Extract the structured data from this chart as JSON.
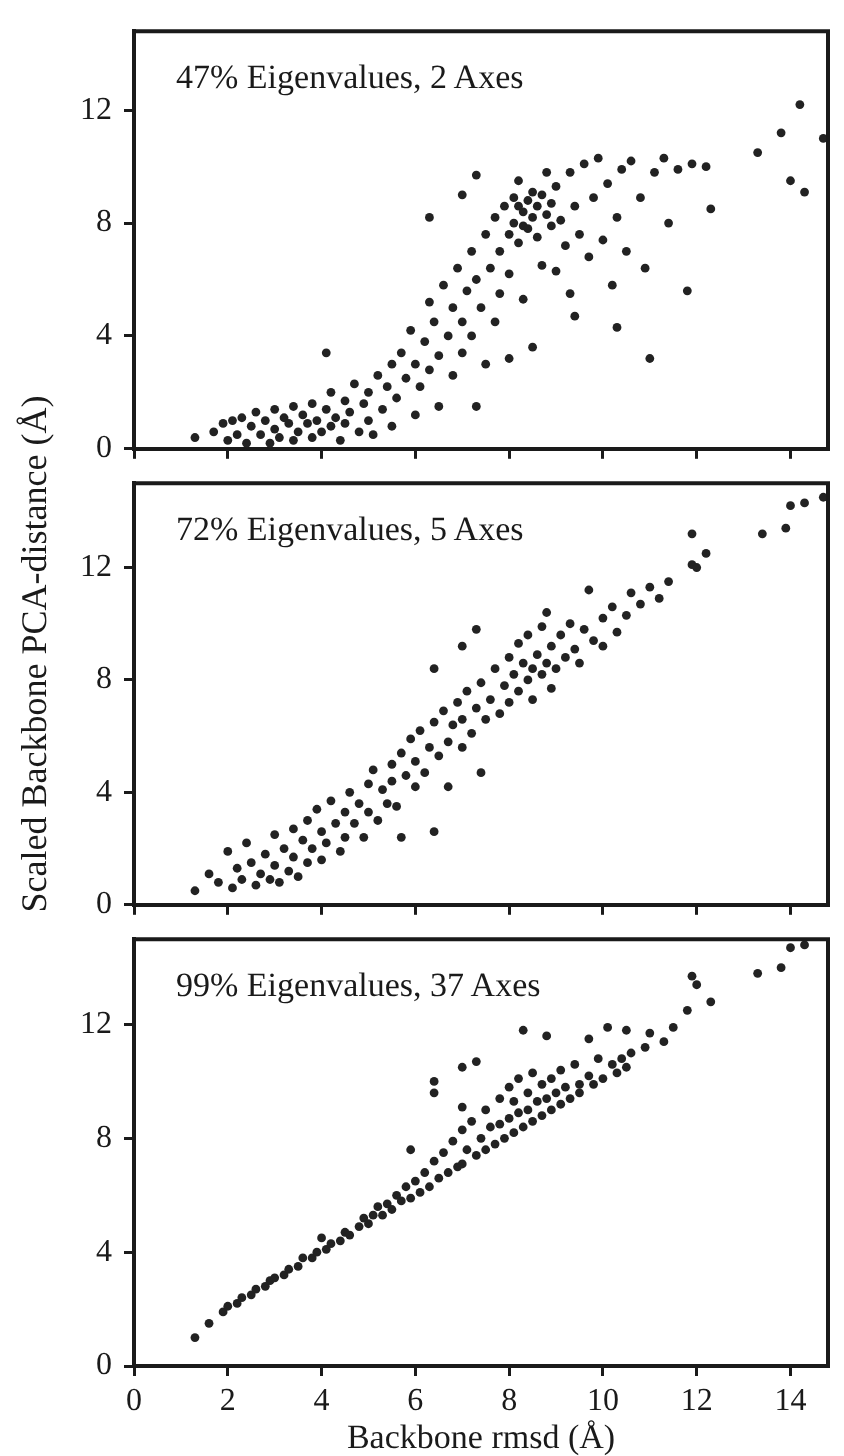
{
  "chart_data": [
    {
      "type": "scatter",
      "annotations": [
        "47% Eigenvalues, 2 Axes"
      ],
      "color": "#222222",
      "marker": "circle",
      "xlim": [
        0,
        14.8
      ],
      "ylim": [
        0,
        14.8
      ],
      "xticks": [
        0,
        2,
        4,
        6,
        8,
        10,
        12,
        14
      ],
      "yticks": [
        0,
        4,
        8,
        12
      ],
      "tick_labels": "y",
      "x": [
        1.3,
        1.7,
        1.9,
        2.0,
        2.1,
        2.2,
        2.3,
        2.4,
        2.5,
        2.6,
        2.7,
        2.8,
        2.9,
        3.0,
        3.0,
        3.1,
        3.2,
        3.3,
        3.4,
        3.4,
        3.5,
        3.6,
        3.7,
        3.8,
        3.8,
        3.9,
        4.0,
        4.1,
        4.1,
        4.2,
        4.2,
        4.3,
        4.4,
        4.5,
        4.5,
        4.6,
        4.7,
        4.8,
        4.9,
        5.0,
        5.0,
        5.1,
        5.2,
        5.3,
        5.4,
        5.5,
        5.5,
        5.6,
        5.7,
        5.8,
        5.9,
        6.0,
        6.0,
        6.1,
        6.2,
        6.3,
        6.3,
        6.3,
        6.4,
        6.5,
        6.5,
        6.6,
        6.7,
        6.8,
        6.8,
        6.9,
        7.0,
        7.0,
        7.0,
        7.1,
        7.2,
        7.2,
        7.3,
        7.3,
        7.3,
        7.4,
        7.5,
        7.5,
        7.6,
        7.7,
        7.7,
        7.8,
        7.8,
        7.9,
        8.0,
        8.0,
        8.0,
        8.1,
        8.1,
        8.2,
        8.2,
        8.2,
        8.3,
        8.3,
        8.3,
        8.4,
        8.4,
        8.5,
        8.5,
        8.5,
        8.6,
        8.6,
        8.7,
        8.7,
        8.8,
        8.8,
        8.9,
        8.9,
        9.0,
        9.0,
        9.1,
        9.2,
        9.3,
        9.3,
        9.4,
        9.4,
        9.5,
        9.6,
        9.7,
        9.8,
        9.9,
        10.0,
        10.1,
        10.2,
        10.3,
        10.3,
        10.4,
        10.5,
        10.6,
        10.8,
        10.9,
        11.0,
        11.1,
        11.3,
        11.4,
        11.6,
        11.8,
        11.9,
        12.2,
        12.3,
        13.3,
        13.8,
        14.0,
        14.2,
        14.3,
        14.7
      ],
      "values": [
        0.4,
        0.6,
        0.9,
        0.3,
        1.0,
        0.5,
        1.1,
        0.2,
        0.8,
        1.3,
        0.5,
        1.0,
        0.2,
        1.4,
        0.7,
        0.4,
        1.1,
        0.9,
        1.5,
        0.3,
        0.6,
        1.2,
        0.9,
        1.6,
        0.4,
        1.0,
        0.6,
        1.4,
        3.4,
        2.0,
        0.8,
        1.1,
        0.3,
        1.7,
        0.9,
        1.3,
        2.3,
        0.6,
        1.6,
        2.0,
        1.0,
        0.5,
        2.6,
        1.4,
        2.2,
        0.8,
        3.0,
        1.8,
        3.4,
        2.5,
        4.2,
        1.2,
        3.0,
        2.2,
        3.8,
        5.2,
        2.8,
        8.2,
        4.5,
        3.3,
        1.5,
        5.8,
        4.0,
        2.6,
        5.0,
        6.4,
        4.5,
        3.4,
        9.0,
        5.6,
        7.0,
        4.0,
        1.5,
        6.0,
        9.7,
        5.0,
        7.6,
        3.0,
        6.4,
        4.5,
        8.2,
        7.0,
        5.5,
        8.6,
        7.6,
        3.2,
        6.2,
        8.9,
        8.0,
        7.3,
        9.5,
        8.6,
        8.4,
        5.3,
        7.9,
        8.8,
        7.8,
        9.1,
        8.2,
        3.6,
        7.5,
        8.6,
        9.0,
        6.5,
        8.3,
        9.8,
        7.9,
        8.7,
        9.3,
        6.3,
        8.1,
        7.2,
        9.8,
        5.5,
        8.6,
        4.7,
        7.6,
        10.1,
        6.8,
        8.9,
        10.3,
        7.4,
        9.4,
        5.8,
        4.3,
        8.2,
        9.9,
        7.0,
        10.2,
        8.9,
        6.4,
        3.2,
        9.8,
        10.3,
        8.0,
        9.9,
        5.6,
        10.1,
        10.0,
        8.5,
        10.5,
        11.2,
        9.5,
        12.2,
        9.1,
        11.0
      ]
    },
    {
      "type": "scatter",
      "annotations": [
        "72% Eigenvalues, 5 Axes"
      ],
      "ylabel": "Scaled Backbone PCA-distance (Å)",
      "color": "#222222",
      "marker": "circle",
      "xlim": [
        0,
        14.8
      ],
      "ylim": [
        0,
        15
      ],
      "xticks": [
        0,
        2,
        4,
        6,
        8,
        10,
        12,
        14
      ],
      "yticks": [
        0,
        4,
        8,
        12
      ],
      "tick_labels": "y",
      "x": [
        1.3,
        1.6,
        1.8,
        2.0,
        2.1,
        2.2,
        2.3,
        2.4,
        2.5,
        2.6,
        2.7,
        2.8,
        2.9,
        3.0,
        3.0,
        3.1,
        3.2,
        3.3,
        3.4,
        3.4,
        3.5,
        3.6,
        3.7,
        3.7,
        3.8,
        3.9,
        4.0,
        4.0,
        4.1,
        4.2,
        4.3,
        4.4,
        4.5,
        4.5,
        4.6,
        4.7,
        4.8,
        4.9,
        5.0,
        5.0,
        5.1,
        5.2,
        5.3,
        5.4,
        5.5,
        5.5,
        5.6,
        5.7,
        5.7,
        5.8,
        5.9,
        6.0,
        6.0,
        6.1,
        6.2,
        6.3,
        6.4,
        6.4,
        6.4,
        6.5,
        6.6,
        6.7,
        6.7,
        6.8,
        6.9,
        7.0,
        7.0,
        7.0,
        7.1,
        7.2,
        7.3,
        7.3,
        7.4,
        7.4,
        7.5,
        7.6,
        7.7,
        7.8,
        7.9,
        8.0,
        8.0,
        8.1,
        8.2,
        8.2,
        8.3,
        8.4,
        8.4,
        8.5,
        8.5,
        8.6,
        8.7,
        8.7,
        8.8,
        8.8,
        8.9,
        8.9,
        9.0,
        9.1,
        9.2,
        9.3,
        9.4,
        9.5,
        9.6,
        9.7,
        9.8,
        10.0,
        10.0,
        10.2,
        10.3,
        10.5,
        10.6,
        10.8,
        11.0,
        11.2,
        11.4,
        11.9,
        11.9,
        12.0,
        12.2,
        13.4,
        13.9,
        14.0,
        14.3,
        14.7
      ],
      "values": [
        0.5,
        1.1,
        0.8,
        1.9,
        0.6,
        1.3,
        0.9,
        2.2,
        1.5,
        0.7,
        1.1,
        1.8,
        0.9,
        2.5,
        1.4,
        0.8,
        2.0,
        1.2,
        2.7,
        1.7,
        1.0,
        2.3,
        3.0,
        1.5,
        2.0,
        3.4,
        2.6,
        1.6,
        2.2,
        3.7,
        2.9,
        1.9,
        3.3,
        2.4,
        4.0,
        2.9,
        3.6,
        2.4,
        4.3,
        3.3,
        4.8,
        3.0,
        4.1,
        3.6,
        5.0,
        4.4,
        3.5,
        2.4,
        5.4,
        4.6,
        5.9,
        4.2,
        5.1,
        6.2,
        4.7,
        5.6,
        6.5,
        2.6,
        8.4,
        5.3,
        6.9,
        5.8,
        4.2,
        6.4,
        7.2,
        5.6,
        6.6,
        9.2,
        7.6,
        6.1,
        7.0,
        9.8,
        4.7,
        7.9,
        6.6,
        7.3,
        8.4,
        6.8,
        7.8,
        8.8,
        7.2,
        8.2,
        9.3,
        7.6,
        8.6,
        8.0,
        9.6,
        8.4,
        7.3,
        8.9,
        8.2,
        9.9,
        8.6,
        10.4,
        7.7,
        9.2,
        8.4,
        9.6,
        8.8,
        10.0,
        9.1,
        8.6,
        9.8,
        11.2,
        9.4,
        10.2,
        9.2,
        10.6,
        9.7,
        10.3,
        11.1,
        10.7,
        11.3,
        10.9,
        11.5,
        12.1,
        13.2,
        12.0,
        12.5,
        13.2,
        13.4,
        14.2,
        14.3,
        14.5
      ]
    },
    {
      "type": "scatter",
      "annotations": [
        "99% Eigenvalues, 37 Axes"
      ],
      "xlabel": "Backbone rmsd (Å)",
      "color": "#222222",
      "marker": "circle",
      "xlim": [
        0,
        14.8
      ],
      "ylim": [
        0,
        15
      ],
      "xticks": [
        0,
        2,
        4,
        6,
        8,
        10,
        12,
        14
      ],
      "yticks": [
        0,
        4,
        8,
        12
      ],
      "x": [
        1.3,
        1.6,
        1.9,
        2.0,
        2.2,
        2.3,
        2.5,
        2.6,
        2.8,
        2.9,
        3.0,
        3.2,
        3.3,
        3.5,
        3.6,
        3.8,
        3.9,
        4.0,
        4.1,
        4.2,
        4.4,
        4.5,
        4.6,
        4.8,
        4.9,
        5.0,
        5.1,
        5.2,
        5.3,
        5.4,
        5.5,
        5.6,
        5.7,
        5.8,
        5.9,
        5.9,
        6.0,
        6.1,
        6.2,
        6.3,
        6.4,
        6.4,
        6.4,
        6.5,
        6.6,
        6.7,
        6.8,
        6.9,
        7.0,
        7.0,
        7.0,
        7.0,
        7.1,
        7.2,
        7.3,
        7.3,
        7.4,
        7.5,
        7.5,
        7.6,
        7.7,
        7.8,
        7.8,
        7.9,
        8.0,
        8.0,
        8.1,
        8.1,
        8.2,
        8.2,
        8.3,
        8.3,
        8.4,
        8.4,
        8.5,
        8.5,
        8.6,
        8.7,
        8.7,
        8.8,
        8.8,
        8.9,
        8.9,
        9.0,
        9.1,
        9.1,
        9.2,
        9.3,
        9.4,
        9.5,
        9.5,
        9.7,
        9.7,
        9.8,
        9.9,
        10.0,
        10.1,
        10.2,
        10.3,
        10.4,
        10.5,
        10.5,
        10.6,
        10.9,
        11.0,
        11.3,
        11.5,
        11.8,
        11.9,
        12.0,
        12.3,
        13.3,
        13.8,
        14.0,
        14.3
      ],
      "values": [
        1.0,
        1.5,
        1.9,
        2.1,
        2.2,
        2.4,
        2.5,
        2.7,
        2.8,
        3.0,
        3.1,
        3.2,
        3.4,
        3.5,
        3.8,
        3.8,
        4.0,
        4.5,
        4.1,
        4.3,
        4.4,
        4.7,
        4.6,
        4.9,
        5.2,
        5.0,
        5.3,
        5.6,
        5.3,
        5.7,
        5.5,
        6.0,
        5.8,
        6.3,
        7.6,
        5.9,
        6.5,
        6.1,
        6.8,
        6.3,
        7.2,
        10.0,
        9.6,
        6.6,
        7.5,
        6.8,
        7.9,
        7.0,
        8.3,
        7.1,
        9.1,
        10.5,
        7.6,
        8.6,
        7.4,
        10.7,
        8.0,
        9.0,
        7.6,
        8.4,
        7.8,
        9.4,
        8.5,
        8.0,
        9.8,
        8.7,
        8.2,
        9.3,
        10.1,
        8.9,
        8.4,
        11.8,
        9.6,
        9.0,
        8.6,
        10.3,
        9.3,
        8.8,
        9.9,
        11.6,
        9.4,
        9.0,
        10.1,
        9.6,
        9.2,
        10.4,
        9.8,
        9.4,
        10.6,
        9.9,
        9.6,
        11.5,
        10.2,
        9.9,
        10.8,
        10.1,
        11.9,
        10.6,
        10.3,
        10.8,
        10.5,
        11.8,
        11.0,
        11.2,
        11.7,
        11.4,
        11.9,
        12.5,
        13.7,
        13.4,
        12.8,
        13.8,
        14.0,
        14.7,
        14.8
      ]
    }
  ]
}
